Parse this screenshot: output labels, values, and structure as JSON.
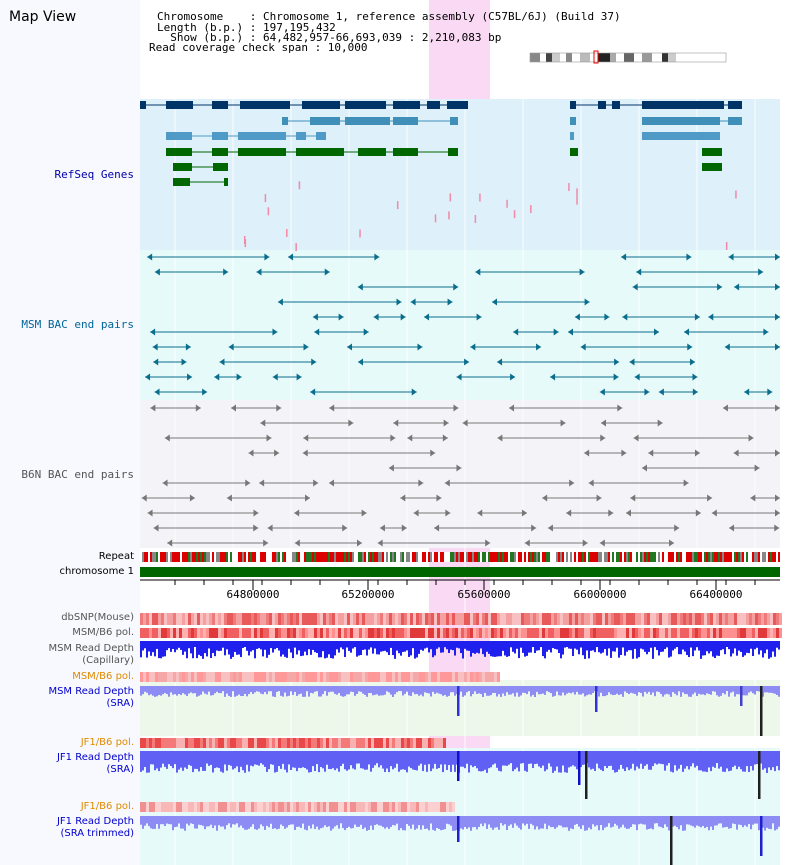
{
  "header": {
    "title": "Map View",
    "chromosome_line": "Chromosome    : Chromosome 1, reference assembly (C57BL/6J) (Build 37)",
    "length_line": "Length (b.p.) : 197,195,432",
    "show_line": "  Show (b.p.) : 64,482,957-66,693,039 : 2,210,083 bp",
    "coverage_line": "Read coverage check span : 10,000"
  },
  "tracks": {
    "refseq": "RefSeq Genes",
    "msm_bac": "MSM BAC end pairs",
    "b6n_bac": "B6N BAC end pairs",
    "repeat": "Repeat",
    "chromosome": "chromosome 1",
    "dbsnp": "dbSNP(Mouse)",
    "msm_b6_pol_1": "MSM/B6 pol.",
    "msm_read_depth_cap_1": "MSM Read Depth",
    "msm_read_depth_cap_2": "(Capillary)",
    "msm_b6_pol_2": "MSM/B6 pol.",
    "msm_read_depth_sra_1": "MSM Read Depth",
    "msm_read_depth_sra_2": "(SRA)",
    "jf1_b6_pol_1": "JF1/B6 pol.",
    "jf1_read_depth_sra_1": "JF1 Read Depth",
    "jf1_read_depth_sra_2": "(SRA)",
    "jf1_b6_pol_2": "JF1/B6 pol.",
    "jf1_read_depth_trim_1": "JF1 Read Depth",
    "jf1_read_depth_trim_2": "(SRA trimmed)"
  },
  "axis": {
    "ticks": [
      "64800000",
      "65200000",
      "65600000",
      "66000000",
      "66400000"
    ]
  },
  "colors": {
    "refseq_label": "#0000aa",
    "msm_label": "#006699",
    "b6n_label": "#555555",
    "orange_label": "#e08a00",
    "blue_label": "#0000cc"
  }
}
